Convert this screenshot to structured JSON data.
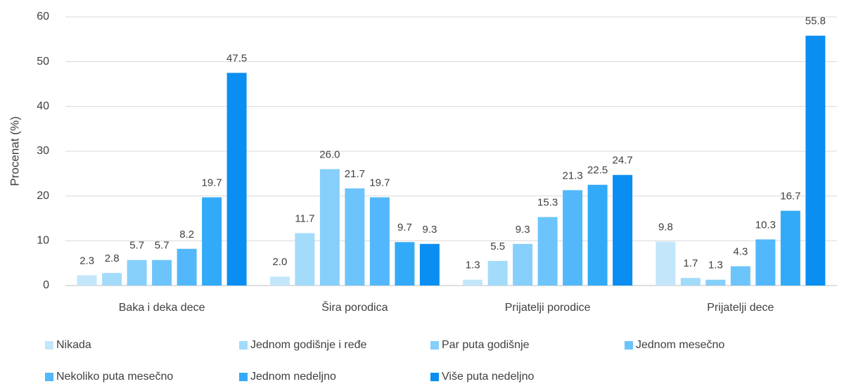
{
  "chart_data": {
    "type": "bar",
    "y_axis_label": "Procenat (%)",
    "categories": [
      "Baka i deka dece",
      "Šira porodica",
      "Prijatelji porodice",
      "Prijatelji dece"
    ],
    "series": [
      {
        "name": "Nikada",
        "color": "#c3e6fa",
        "values": [
          2.3,
          2.0,
          1.3,
          9.8
        ],
        "value_labels": [
          "2.3",
          "2.0",
          "1.3",
          "9.8"
        ]
      },
      {
        "name": "Jednom godišnje i ređe",
        "color": "#a3dbfb",
        "values": [
          2.8,
          11.7,
          5.5,
          1.7
        ],
        "value_labels": [
          "2.8",
          "11.7",
          "5.5",
          "1.7"
        ]
      },
      {
        "name": "Par puta godišnje",
        "color": "#86cffb",
        "values": [
          5.7,
          26.0,
          9.3,
          1.3
        ],
        "value_labels": [
          "5.7",
          "26.0",
          "9.3",
          "1.3"
        ]
      },
      {
        "name": "Jednom mesečno",
        "color": "#6cc4fb",
        "values": [
          5.7,
          21.7,
          15.3,
          4.3
        ],
        "value_labels": [
          "5.7",
          "21.7",
          "15.3",
          "4.3"
        ]
      },
      {
        "name": "Nekoliko puta mesečno",
        "color": "#52b8fb",
        "values": [
          8.2,
          19.7,
          21.3,
          10.3
        ],
        "value_labels": [
          "8.2",
          "19.7",
          "21.3",
          "10.3"
        ]
      },
      {
        "name": "Jednom nedeljno",
        "color": "#33aaf8",
        "values": [
          19.7,
          9.7,
          22.5,
          16.7
        ],
        "value_labels": [
          "19.7",
          "9.7",
          "22.5",
          "16.7"
        ]
      },
      {
        "name": "Više puta nedeljno",
        "color": "#0b8ef2",
        "values": [
          47.5,
          9.3,
          24.7,
          55.8
        ],
        "value_labels": [
          "47.5",
          "9.3",
          "24.7",
          "55.8"
        ]
      }
    ],
    "ylim": [
      0,
      60
    ],
    "yticks": [
      0,
      10,
      20,
      30,
      40,
      50,
      60
    ],
    "grid": true,
    "legend": "bottom"
  }
}
